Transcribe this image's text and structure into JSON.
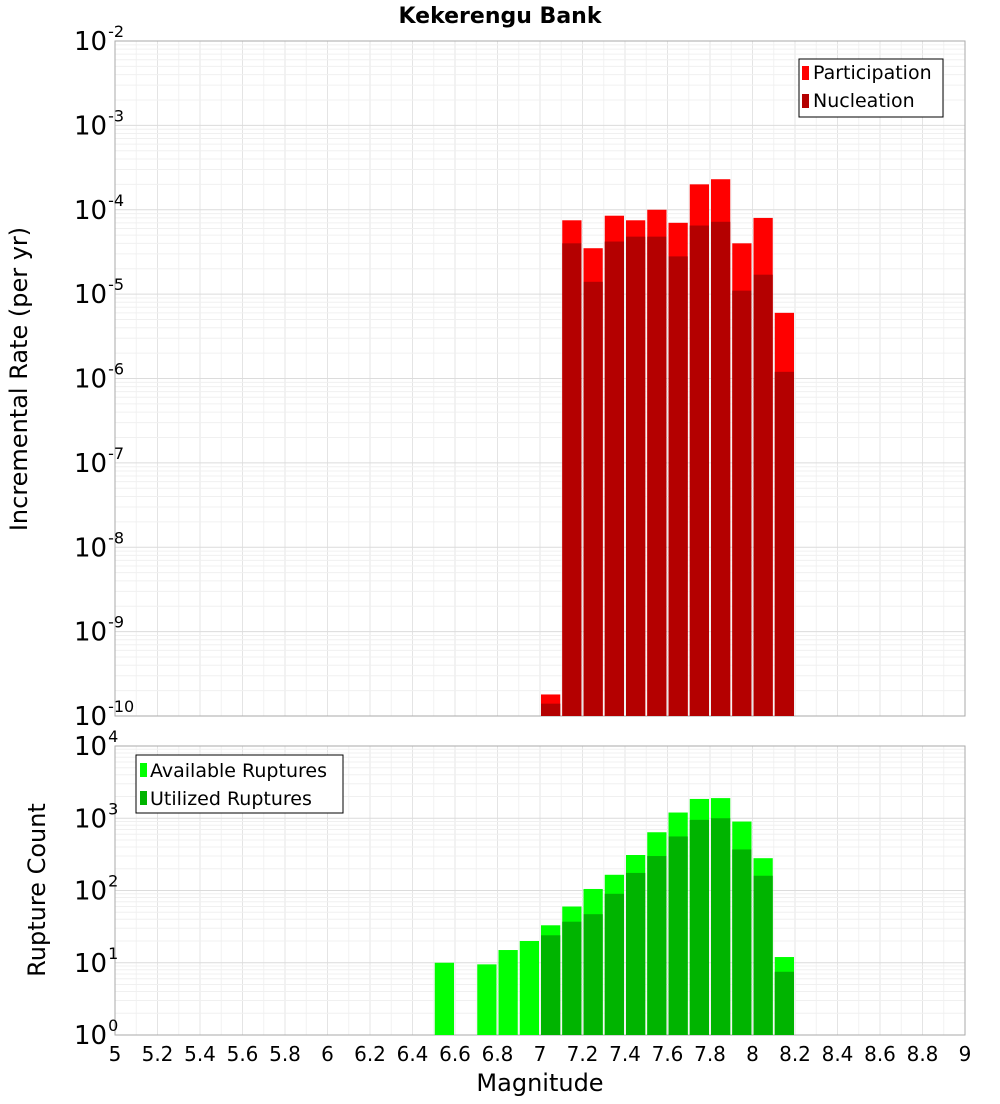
{
  "chart_data": {
    "type": "bar",
    "title": "Kekerengu Bank",
    "xlabel": "Magnitude",
    "x_ticks": [
      "5",
      "5.2",
      "5.4",
      "5.6",
      "5.8",
      "6",
      "6.2",
      "6.4",
      "6.6",
      "6.8",
      "7",
      "7.2",
      "7.4",
      "7.6",
      "7.8",
      "8",
      "8.2",
      "8.4",
      "8.6",
      "8.8",
      "9"
    ],
    "xlim": [
      5,
      9
    ],
    "grid": true,
    "panels": [
      {
        "name": "rates",
        "ylabel": "Incremental Rate (per yr)",
        "yscale": "log",
        "ylim_exp": [
          -10,
          -2
        ],
        "legend_position": "top-right",
        "series": [
          {
            "name": "Participation",
            "color": "#ff0000",
            "x": [
              7.05,
              7.15,
              7.25,
              7.35,
              7.45,
              7.55,
              7.65,
              7.75,
              7.85,
              7.95,
              8.05,
              8.15
            ],
            "values": [
              1.8e-10,
              7.5e-05,
              3.5e-05,
              8.5e-05,
              7.5e-05,
              0.0001,
              7e-05,
              0.0002,
              0.00023,
              4e-05,
              8e-05,
              6e-06
            ]
          },
          {
            "name": "Nucleation",
            "color": "#b40000",
            "x": [
              7.05,
              7.15,
              7.25,
              7.35,
              7.45,
              7.55,
              7.65,
              7.75,
              7.85,
              7.95,
              8.05,
              8.15
            ],
            "values": [
              1.4e-10,
              4e-05,
              1.4e-05,
              4.2e-05,
              4.8e-05,
              4.8e-05,
              2.8e-05,
              6.5e-05,
              7.2e-05,
              1.1e-05,
              1.7e-05,
              1.2e-06
            ]
          }
        ]
      },
      {
        "name": "counts",
        "ylabel": "Rupture Count",
        "yscale": "log",
        "ylim_exp": [
          0,
          4
        ],
        "legend_position": "top-left",
        "series": [
          {
            "name": "Available Ruptures",
            "color": "#00ff00",
            "x": [
              6.55,
              6.75,
              6.85,
              6.95,
              7.05,
              7.15,
              7.25,
              7.35,
              7.45,
              7.55,
              7.65,
              7.75,
              7.85,
              7.95,
              8.05,
              8.15
            ],
            "values": [
              10,
              9.5,
              15,
              20,
              33,
              60,
              105,
              165,
              310,
              640,
              1200,
              1850,
              1900,
              900,
              280,
              12
            ]
          },
          {
            "name": "Utilized Ruptures",
            "color": "#00b400",
            "x": [
              6.55,
              6.75,
              6.85,
              6.95,
              7.05,
              7.15,
              7.25,
              7.35,
              7.45,
              7.55,
              7.65,
              7.75,
              7.85,
              7.95,
              8.05,
              8.15
            ],
            "values": [
              0,
              0,
              0,
              0,
              24,
              37,
              47,
              90,
              175,
              300,
              560,
              950,
              1000,
              370,
              160,
              7.5
            ]
          }
        ]
      }
    ]
  }
}
